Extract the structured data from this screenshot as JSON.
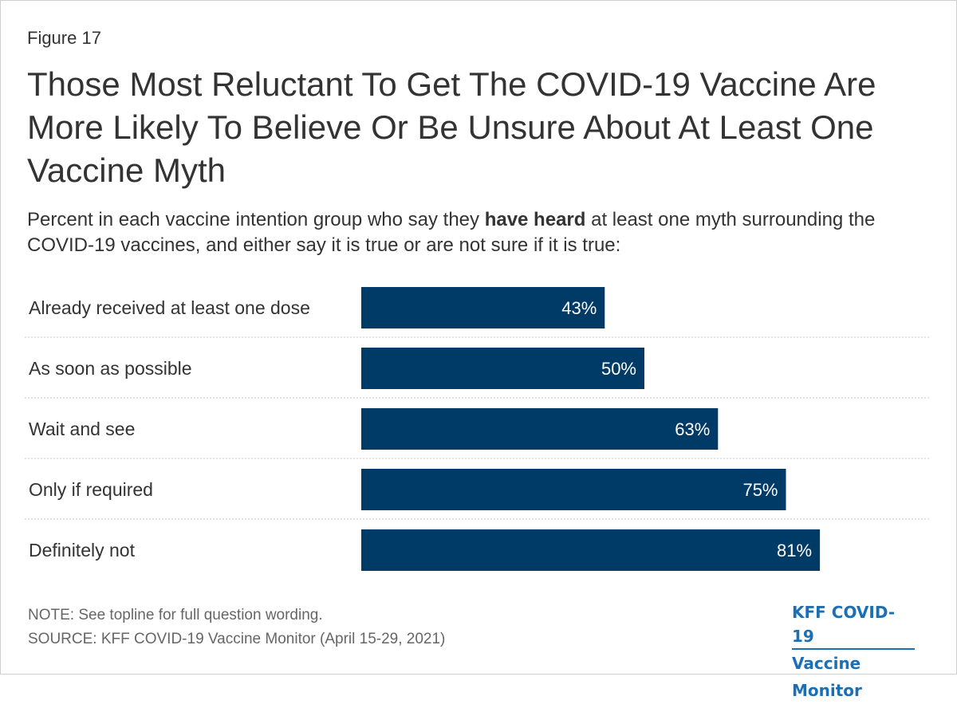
{
  "figure_label": "Figure 17",
  "title": "Those Most Reluctant To Get The COVID-19 Vaccine Are More Likely To Believe Or Be Unsure About At Least One Vaccine Myth",
  "subtitle": {
    "before": "Percent in each vaccine intention group who say they ",
    "bold": "have heard",
    "after": " at least one myth surrounding the COVID-19 vaccines, and either say it is true or are not sure if it is true:"
  },
  "colors": {
    "bar": "#003a66",
    "bar_label": "#ffffff",
    "divider": "#c8c8c8",
    "logo": "#1a6fb5"
  },
  "chart_data": {
    "type": "bar",
    "orientation": "horizontal",
    "categories": [
      "Already received at least one dose",
      "As soon as possible",
      "Wait and see",
      "Only if required",
      "Definitely not"
    ],
    "values": [
      43,
      50,
      63,
      75,
      81
    ],
    "value_labels": [
      "43%",
      "50%",
      "63%",
      "75%",
      "81%"
    ],
    "unit": "%",
    "xlim": [
      0,
      100
    ],
    "grid": false,
    "legend": "none"
  },
  "footer": {
    "note": "NOTE: See topline for full question wording.",
    "source": "SOURCE: KFF COVID-19 Vaccine Monitor (April 15-29, 2021)"
  },
  "logo": {
    "line1": "KFF COVID-19",
    "line2": "Vaccine Monitor"
  }
}
